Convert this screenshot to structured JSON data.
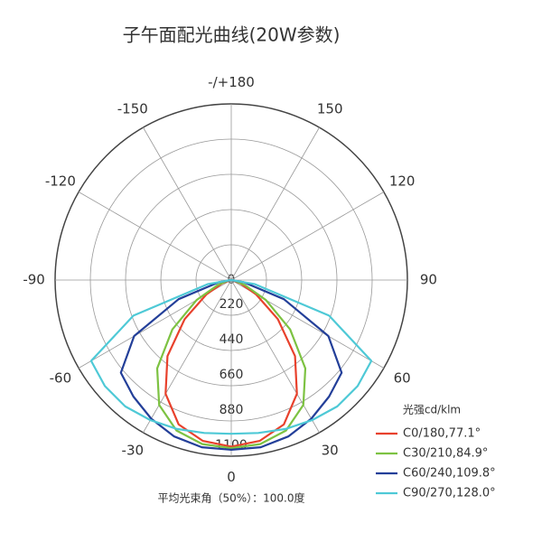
{
  "chart_data": {
    "type": "polar",
    "title": "子午面配光曲线(20W参数)",
    "footnote": "平均光束角（50%）：100.0度",
    "legend_title": "光强cd/klm",
    "theta": [
      -90,
      -80,
      -70,
      -60,
      -50,
      -40,
      -30,
      -20,
      -10,
      0,
      10,
      20,
      30,
      40,
      50,
      60,
      70,
      80,
      90
    ],
    "rlim": [
      0,
      1100
    ],
    "rticks": [
      0,
      220,
      440,
      660,
      880,
      1100
    ],
    "thetaticks": [
      -150,
      -120,
      -90,
      -60,
      -30,
      0,
      30,
      60,
      90,
      120,
      150,
      {
        "value": 180,
        "label": "-/+180"
      }
    ],
    "grid": true,
    "legend": "lower right",
    "series": [
      {
        "name": "C0/180,77.1°",
        "color": "#e8412c",
        "values": [
          0,
          10,
          60,
          180,
          380,
          620,
          820,
          960,
          1020,
          1040,
          1020,
          960,
          820,
          620,
          380,
          180,
          60,
          10,
          0
        ]
      },
      {
        "name": "C30/210,84.9°",
        "color": "#7dc242",
        "values": [
          0,
          20,
          90,
          250,
          480,
          720,
          900,
          1000,
          1040,
          1050,
          1040,
          1000,
          900,
          720,
          480,
          250,
          90,
          20,
          0
        ]
      },
      {
        "name": "C60/240,109.8°",
        "color": "#233f99",
        "values": [
          0,
          80,
          350,
          700,
          900,
          950,
          1000,
          1040,
          1060,
          1060,
          1060,
          1040,
          1000,
          950,
          900,
          700,
          350,
          80,
          0
        ]
      },
      {
        "name": "C90/270,128.0°",
        "color": "#4ec9d6",
        "values": [
          0,
          150,
          650,
          1010,
          1030,
          1030,
          1010,
          990,
          970,
          960,
          970,
          990,
          1010,
          1030,
          1030,
          1010,
          650,
          150,
          0
        ]
      }
    ]
  }
}
